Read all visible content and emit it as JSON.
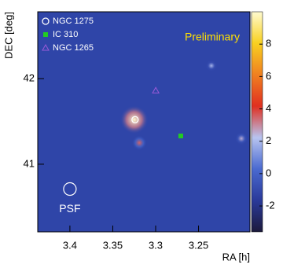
{
  "chart_data": {
    "type": "heatmap",
    "xlabel": "RA [h]",
    "ylabel": "DEC [deg]",
    "xlim": [
      3.4375,
      3.19
    ],
    "ylim": [
      40.21,
      42.78
    ],
    "xticks": [
      3.4,
      3.35,
      3.3,
      3.25
    ],
    "yticks": [
      41,
      42
    ],
    "zlim": [
      -3.6,
      10
    ],
    "zticks": [
      -2,
      0,
      2,
      4,
      6,
      8
    ],
    "colormap": [
      "#1c1a3c",
      "#2a3a9a",
      "#4a6ad0",
      "#b8c4f0",
      "#e03020",
      "#f08020",
      "#f8d020",
      "#fffbd0"
    ],
    "hotspots": [
      {
        "x": 3.325,
        "y": 41.52,
        "value": 10
      },
      {
        "x": 3.319,
        "y": 41.25,
        "value": 3.5
      },
      {
        "x": 3.2,
        "y": 41.3,
        "value": 2.5
      },
      {
        "x": 3.235,
        "y": 42.15,
        "value": 2
      }
    ],
    "series": [
      {
        "name": "NGC 1275",
        "color": "#ffffff",
        "marker": "circle",
        "x": [
          3.324
        ],
        "y": [
          41.52
        ]
      },
      {
        "name": "IC 310",
        "color": "#22cc22",
        "marker": "square",
        "x": [
          3.2707
        ],
        "y": [
          41.33
        ]
      },
      {
        "name": "NGC 1265",
        "color": "#9a5ad8",
        "marker": "triangle",
        "x": [
          3.2999
        ],
        "y": [
          41.86
        ]
      }
    ],
    "annotations": [
      {
        "text": "Preliminary",
        "color": "#ffe000"
      },
      {
        "text": "PSF",
        "x": 3.4,
        "y": 40.71,
        "color": "#ffffff"
      }
    ],
    "legend": "upper left"
  }
}
